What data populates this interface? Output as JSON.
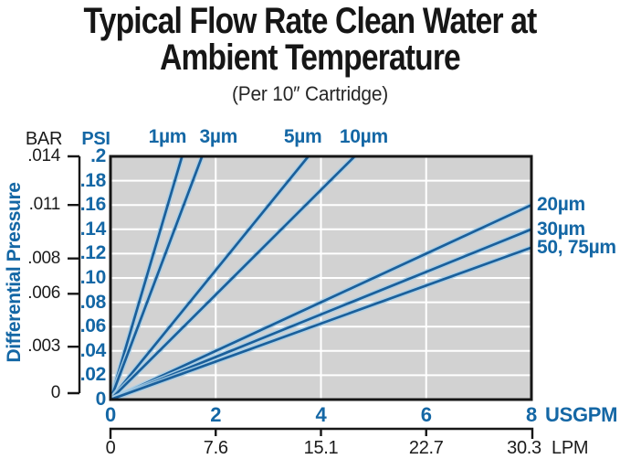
{
  "title": {
    "line1": "Typical Flow Rate Clean Water at",
    "line2": "Ambient Temperature",
    "subtitle": "(Per 10″ Cartridge)"
  },
  "colors": {
    "blue_text": "#1467a5",
    "line_blue": "#1a5f9b",
    "line_halo": "#a8cfe8",
    "axis_black": "#161616",
    "plot_bg": "#d2d2d2",
    "grid": "#ffffff"
  },
  "y_axis": {
    "bar_header": "BAR",
    "psi_header": "PSI",
    "rotated_label": "Differential Pressure",
    "bar_ticks": [
      {
        "label": ".014",
        "psi_equiv": 0.203
      },
      {
        "label": ".011",
        "psi_equiv": 0.16
      },
      {
        "label": ".008",
        "psi_equiv": 0.116
      },
      {
        "label": ".006",
        "psi_equiv": 0.087
      },
      {
        "label": ".003",
        "psi_equiv": 0.0435
      },
      {
        "label": "0",
        "psi_equiv": 0
      }
    ],
    "psi_ticks": [
      {
        "label": ".2",
        "value": 0.2
      },
      {
        "label": ".18",
        "value": 0.18
      },
      {
        "label": ".16",
        "value": 0.16
      },
      {
        "label": ".14",
        "value": 0.14
      },
      {
        "label": ".12",
        "value": 0.12
      },
      {
        "label": ".10",
        "value": 0.1
      },
      {
        "label": ".08",
        "value": 0.08
      },
      {
        "label": ".06",
        "value": 0.06
      },
      {
        "label": ".04",
        "value": 0.04
      },
      {
        "label": ".02",
        "value": 0.02
      },
      {
        "label": "0",
        "value": 0
      }
    ]
  },
  "x_axis": {
    "usgpm_unit": "USGPM",
    "usgpm_ticks": [
      {
        "label": "0",
        "value": 0
      },
      {
        "label": "2",
        "value": 2
      },
      {
        "label": "4",
        "value": 4
      },
      {
        "label": "6",
        "value": 6
      },
      {
        "label": "8",
        "value": 8
      }
    ],
    "lpm_unit": "LPM",
    "lpm_ticks": [
      {
        "label": "0",
        "value": 0,
        "dx": 0
      },
      {
        "label": "7.6",
        "value": 2,
        "dx": 0
      },
      {
        "label": "15.1",
        "value": 4,
        "dx": 0
      },
      {
        "label": "22.7",
        "value": 6,
        "dx": 0
      },
      {
        "label": "30.3",
        "value": 8,
        "dx": -8
      }
    ]
  },
  "chart_data": {
    "type": "line",
    "title": "Typical Flow Rate Clean Water at Ambient Temperature (Per 10″ Cartridge)",
    "xlabel": "USGPM",
    "x2label": "LPM",
    "ylabel": "Differential Pressure",
    "y_units": [
      "PSI",
      "BAR"
    ],
    "xlim": [
      0,
      8
    ],
    "ylim_psi": [
      0,
      0.2
    ],
    "ylim_bar": [
      0,
      0.0145
    ],
    "x2_ticks_lpm": [
      0,
      7.6,
      15.1,
      22.7,
      30.3
    ],
    "grid": true,
    "series": [
      {
        "name": "1µm",
        "points_usgpm_psi": [
          [
            0,
            0
          ],
          [
            1.36,
            0.2
          ]
        ],
        "exit": "top",
        "label_dx": -16
      },
      {
        "name": "3µm",
        "points_usgpm_psi": [
          [
            0,
            0
          ],
          [
            1.74,
            0.2
          ]
        ],
        "exit": "top",
        "label_dx": 18
      },
      {
        "name": "5µm",
        "points_usgpm_psi": [
          [
            0,
            0
          ],
          [
            3.76,
            0.2
          ]
        ],
        "exit": "top",
        "label_dx": -6
      },
      {
        "name": "10µm",
        "points_usgpm_psi": [
          [
            0,
            0
          ],
          [
            4.64,
            0.2
          ]
        ],
        "exit": "top",
        "label_dx": 10
      },
      {
        "name": "20µm",
        "points_usgpm_psi": [
          [
            0,
            0
          ],
          [
            8,
            0.16
          ]
        ],
        "exit": "right",
        "label_dx": 0
      },
      {
        "name": "30µm",
        "points_usgpm_psi": [
          [
            0,
            0
          ],
          [
            8,
            0.14
          ]
        ],
        "exit": "right",
        "label_dx": 0
      },
      {
        "name": "50, 75µm",
        "points_usgpm_psi": [
          [
            0,
            0
          ],
          [
            8,
            0.125
          ]
        ],
        "exit": "right",
        "label_dx": 0
      }
    ]
  }
}
